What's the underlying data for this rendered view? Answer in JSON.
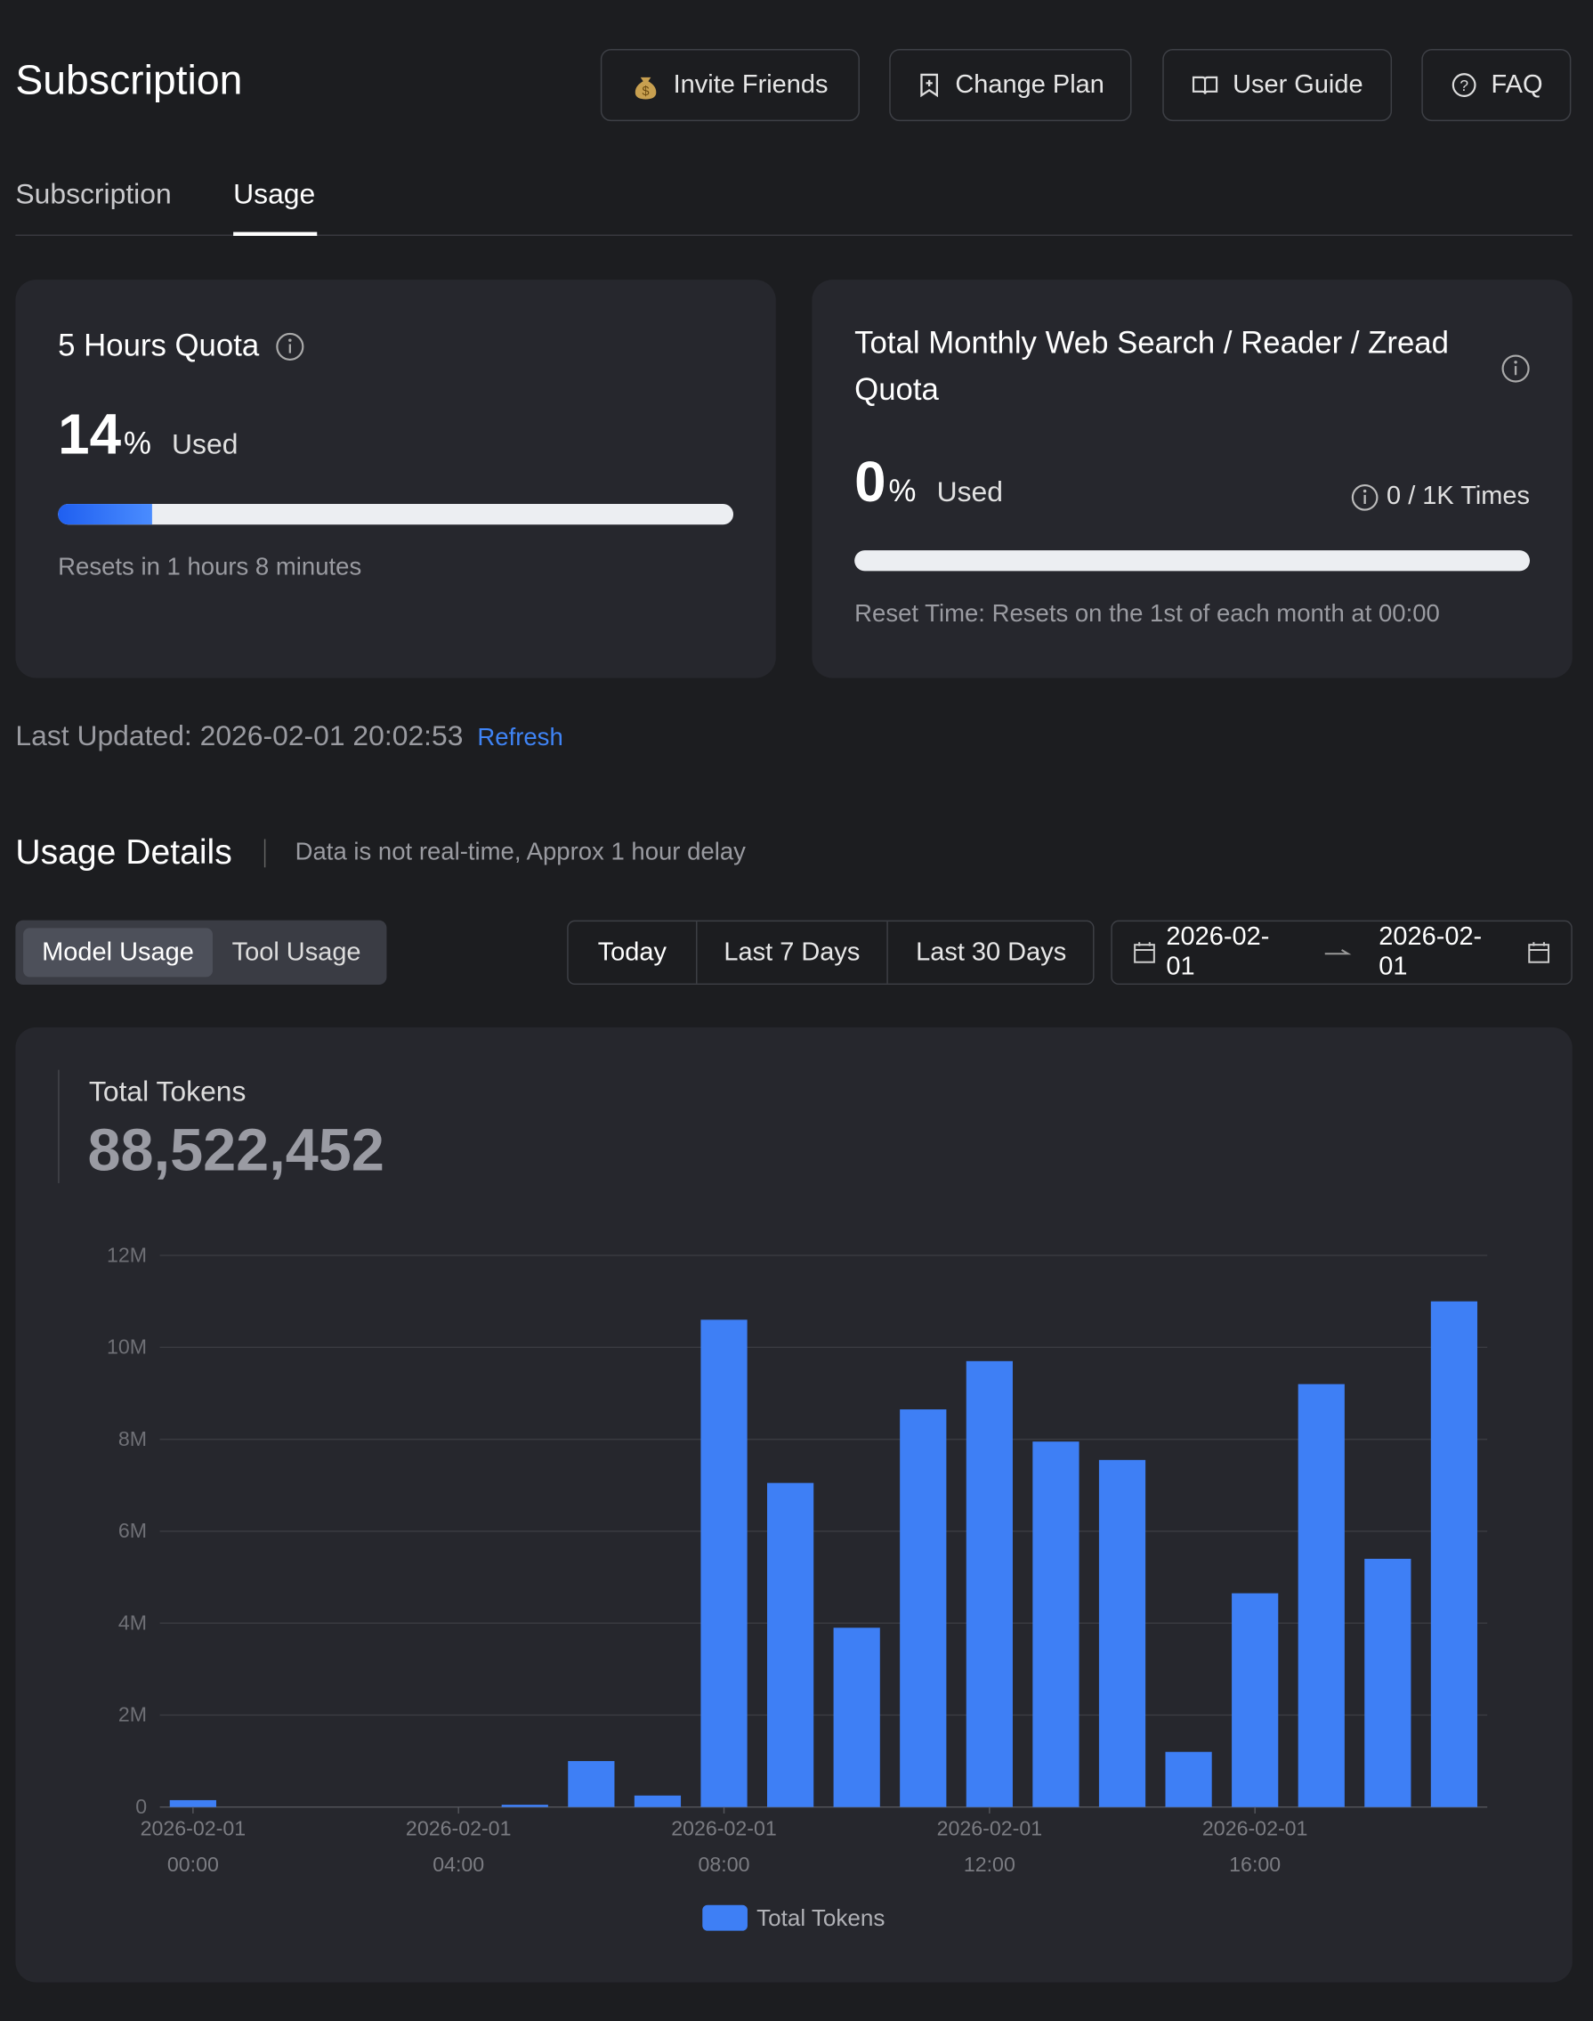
{
  "header": {
    "title": "Subscription",
    "buttons": [
      "Invite Friends",
      "Change Plan",
      "User Guide",
      "FAQ"
    ]
  },
  "tabs": {
    "items": [
      "Subscription",
      "Usage"
    ],
    "active": 1
  },
  "quota_cards": [
    {
      "title": "5 Hours Quota",
      "percent": 14,
      "percent_unit": "%",
      "used_label": "Used",
      "reset": "Resets in 1 hours 8 minutes"
    },
    {
      "title": "Total Monthly Web Search / Reader / Zread Quota",
      "percent": 0,
      "percent_unit": "%",
      "used_label": "Used",
      "times": "0 / 1K Times",
      "reset": "Reset Time: Resets on the 1st of each month at 00:00"
    }
  ],
  "last_updated": "Last Updated: 2026-02-01 20:02:53",
  "refresh": "Refresh",
  "usage_details": {
    "title": "Usage Details",
    "note": "Data is not real-time, Approx 1 hour delay"
  },
  "toggle": {
    "items": [
      "Model Usage",
      "Tool Usage"
    ],
    "active": 0
  },
  "ranges": [
    "Today",
    "Last 7 Days",
    "Last 30 Days"
  ],
  "date_range": {
    "start": "2026-02-01",
    "end": "2026-02-01"
  },
  "total": {
    "label": "Total Tokens",
    "value": "88,522,452"
  },
  "chart_data": {
    "type": "bar",
    "categories": [
      "2026-02-01 00:00",
      null,
      null,
      null,
      "2026-02-01 04:00",
      null,
      null,
      null,
      "2026-02-01 08:00",
      null,
      null,
      null,
      "2026-02-01 12:00",
      null,
      null,
      null,
      "2026-02-01 16:00",
      null,
      null,
      null
    ],
    "series": [
      {
        "name": "Total Tokens",
        "color": "#3e7ff5",
        "values": [
          150000,
          0,
          0,
          0,
          0,
          50000,
          1000000,
          250000,
          10600000,
          7050000,
          3900000,
          8650000,
          9700000,
          7950000,
          7550000,
          1200000,
          4650000,
          9200000,
          5400000,
          11000000
        ]
      }
    ],
    "ylim": [
      0,
      12000000
    ],
    "yticks": [
      0,
      {
        "value": 2000000,
        "label": "2M"
      },
      {
        "value": 4000000,
        "label": "4M"
      },
      {
        "value": 6000000,
        "label": "6M"
      },
      {
        "value": 8000000,
        "label": "8M"
      },
      {
        "value": 10000000,
        "label": "10M"
      },
      {
        "value": 12000000,
        "label": "12M"
      }
    ],
    "grid": true,
    "legend": "bottom"
  }
}
